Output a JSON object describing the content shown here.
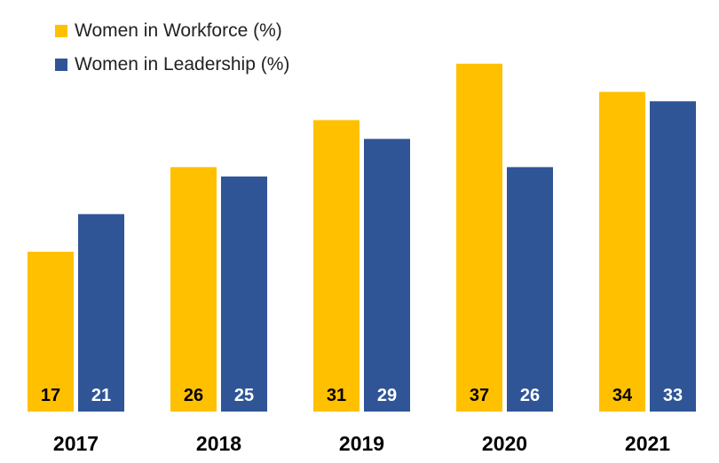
{
  "chart_data": {
    "type": "bar",
    "title": "",
    "xlabel": "",
    "ylabel": "",
    "categories": [
      "2017",
      "2018",
      "2019",
      "2020",
      "2021"
    ],
    "series": [
      {
        "name": "Women in Workforce (%)",
        "values": [
          17,
          26,
          31,
          37,
          34
        ],
        "color": "#FFC000"
      },
      {
        "name": "Women in Leadership (%)",
        "values": [
          21,
          25,
          29,
          26,
          33
        ],
        "color": "#2F5597"
      }
    ],
    "ylim": [
      0,
      40
    ],
    "grid": false,
    "legend_position": "top-left",
    "data_labels": "inside-bottom",
    "label_colors": {
      "dark": "#000000",
      "light": "#ffffff"
    }
  }
}
